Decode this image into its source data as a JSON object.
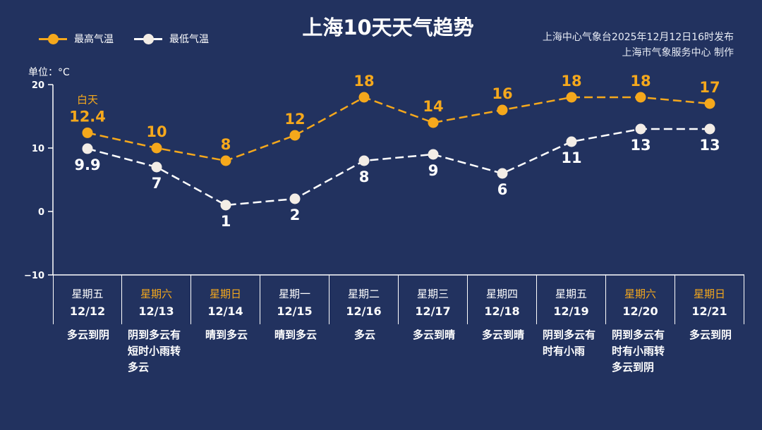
{
  "title": "上海10天天气趋势",
  "publisher": {
    "line1": "上海中心气象台2025年12月12日16时发布",
    "line2": "上海市气象服务中心  制作"
  },
  "colors": {
    "background": "#22325f",
    "high": "#f5a81c",
    "low": "#f3ede6",
    "weekend": "#f5a81c"
  },
  "chart_data": {
    "type": "line",
    "title": "上海10天天气趋势",
    "ylabel": "单位：°C",
    "ylim": [
      -10,
      20
    ],
    "yticks": [
      20,
      10,
      0,
      -10
    ],
    "grid": false,
    "legend": "top-left",
    "annotation": "白天",
    "categories": [
      "12/12",
      "12/13",
      "12/14",
      "12/15",
      "12/16",
      "12/17",
      "12/18",
      "12/19",
      "12/20",
      "12/21"
    ],
    "weekdays": [
      "星期五",
      "星期六",
      "星期日",
      "星期一",
      "星期二",
      "星期三",
      "星期四",
      "星期五",
      "星期六",
      "星期日"
    ],
    "weekend": [
      false,
      true,
      true,
      false,
      false,
      false,
      false,
      false,
      true,
      true
    ],
    "weather": [
      "多云到阴",
      "阴到多云有短时小雨转多云",
      "晴到多云",
      "晴到多云",
      "多云",
      "多云到晴",
      "多云到晴",
      "阴到多云有时有小雨",
      "阴到多云有时有小雨转多云到阴",
      "多云到阴"
    ],
    "series": [
      {
        "name": "最高气温",
        "values": [
          12.4,
          10,
          8,
          12,
          18,
          14,
          16,
          18,
          18,
          17
        ],
        "labels": [
          "12.4",
          "10",
          "8",
          "12",
          "18",
          "14",
          "16",
          "18",
          "18",
          "17"
        ],
        "color": "#f5a81c",
        "style": "dashed"
      },
      {
        "name": "最低气温",
        "values": [
          9.9,
          7,
          1,
          2,
          8,
          9,
          6,
          11,
          13,
          13
        ],
        "labels": [
          "9.9",
          "7",
          "1",
          "2",
          "8",
          "9",
          "6",
          "11",
          "13",
          "13"
        ],
        "color": "#f3ede6",
        "style": "dashed"
      }
    ]
  }
}
